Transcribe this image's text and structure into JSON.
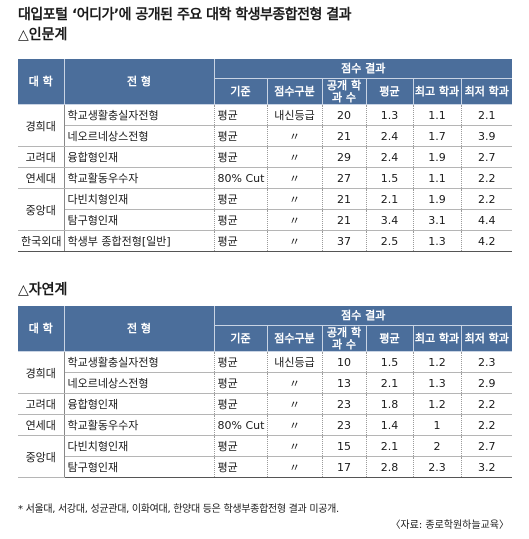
{
  "title": "대입포털 ‘어디가’에 공개된 주요 대학 학생부종합전형 결과",
  "headers": {
    "univ": "대 학",
    "type": "전 형",
    "group": "점수 결과",
    "basis": "기준",
    "score_class": "점수구분",
    "applicants": "공개 학과 수",
    "avg": "평균",
    "max": "최고 학과",
    "min": "최저 학과"
  },
  "sections": [
    {
      "label": "△인문계",
      "rows": [
        {
          "univ": "경희대",
          "type": "학교생활충실자전형",
          "basis": "평균",
          "score_class": "내신등급",
          "n": "20",
          "avg": "1.3",
          "max": "1.1",
          "min": "2.1"
        },
        {
          "univ": "",
          "type": "네오르네상스전형",
          "basis": "평균",
          "score_class": "〃",
          "n": "21",
          "avg": "2.4",
          "max": "1.7",
          "min": "3.9"
        },
        {
          "univ": "고려대",
          "type": "융합형인재",
          "basis": "평균",
          "score_class": "〃",
          "n": "29",
          "avg": "2.4",
          "max": "1.9",
          "min": "2.7"
        },
        {
          "univ": "연세대",
          "type": "학교활동우수자",
          "basis": "80% Cut",
          "score_class": "〃",
          "n": "27",
          "avg": "1.5",
          "max": "1.1",
          "min": "2.2"
        },
        {
          "univ": "중앙대",
          "type": "다빈치형인재",
          "basis": "평균",
          "score_class": "〃",
          "n": "21",
          "avg": "2.1",
          "max": "1.9",
          "min": "2.2"
        },
        {
          "univ": "",
          "type": "탐구형인재",
          "basis": "평균",
          "score_class": "〃",
          "n": "21",
          "avg": "3.4",
          "max": "3.1",
          "min": "4.4"
        },
        {
          "univ": "한국외대",
          "type": "학생부 종합전형[일반]",
          "basis": "평균",
          "score_class": "〃",
          "n": "37",
          "avg": "2.5",
          "max": "1.3",
          "min": "4.2"
        }
      ]
    },
    {
      "label": "△자연계",
      "rows": [
        {
          "univ": "경희대",
          "type": "학교생활충실자전형",
          "basis": "평균",
          "score_class": "내신등급",
          "n": "10",
          "avg": "1.5",
          "max": "1.2",
          "min": "2.3"
        },
        {
          "univ": "",
          "type": "네오르네상스전형",
          "basis": "평균",
          "score_class": "〃",
          "n": "13",
          "avg": "2.1",
          "max": "1.3",
          "min": "2.9"
        },
        {
          "univ": "고려대",
          "type": "융합형인재",
          "basis": "평균",
          "score_class": "〃",
          "n": "23",
          "avg": "1.8",
          "max": "1.2",
          "min": "2.2"
        },
        {
          "univ": "연세대",
          "type": "학교활동우수자",
          "basis": "80% Cut",
          "score_class": "〃",
          "n": "23",
          "avg": "1.4",
          "max": "1",
          "min": "2.2"
        },
        {
          "univ": "중앙대",
          "type": "다빈치형인재",
          "basis": "평균",
          "score_class": "〃",
          "n": "15",
          "avg": "2.1",
          "max": "2",
          "min": "2.7"
        },
        {
          "univ": "",
          "type": "탐구형인재",
          "basis": "평균",
          "score_class": "〃",
          "n": "17",
          "avg": "2.8",
          "max": "2.3",
          "min": "3.2"
        }
      ]
    }
  ],
  "note": "* 서울대, 서강대, 성균관대, 이화여대, 한양대 등은 학생부종합전형 결과 미공개.",
  "source": "〈자료: 종로학원하늘교육〉"
}
